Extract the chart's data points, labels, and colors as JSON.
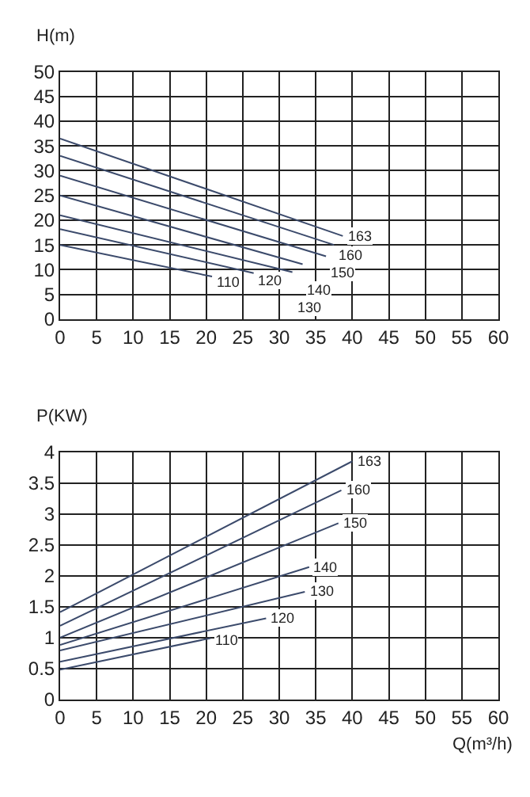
{
  "chart_data": [
    {
      "type": "line",
      "ylabel": "H(m)",
      "xlim": [
        0,
        60
      ],
      "ylim": [
        0,
        50
      ],
      "xticks": [
        0,
        5,
        10,
        15,
        20,
        25,
        30,
        35,
        40,
        45,
        50,
        55,
        60
      ],
      "yticks": [
        0,
        5,
        10,
        15,
        20,
        25,
        30,
        35,
        40,
        45,
        50
      ],
      "grid": true,
      "marker": "none",
      "line_style": "solid",
      "series": [
        {
          "name": "163",
          "color": "#3b4a6b",
          "x": [
            0,
            38.7
          ],
          "values": [
            36.5,
            16.8
          ]
        },
        {
          "name": "160",
          "color": "#3b4a6b",
          "x": [
            0,
            37.5
          ],
          "values": [
            33,
            15
          ]
        },
        {
          "name": "150",
          "color": "#3b4a6b",
          "x": [
            0,
            36.4
          ],
          "values": [
            29,
            12.7
          ]
        },
        {
          "name": "140",
          "color": "#3b4a6b",
          "x": [
            0,
            33.2
          ],
          "values": [
            25,
            11.1
          ]
        },
        {
          "name": "130",
          "color": "#3b4a6b",
          "x": [
            0,
            31.8
          ],
          "values": [
            21,
            9.5
          ]
        },
        {
          "name": "120",
          "color": "#3b4a6b",
          "x": [
            0,
            26.5
          ],
          "values": [
            18.2,
            9.3
          ]
        },
        {
          "name": "110",
          "color": "#3b4a6b",
          "x": [
            0,
            20.8
          ],
          "values": [
            15,
            8.6
          ]
        }
      ]
    },
    {
      "type": "line",
      "ylabel": "P(KW)",
      "xlabel": "Q(m³/h)",
      "xlim": [
        0,
        60
      ],
      "ylim": [
        0,
        4
      ],
      "xticks": [
        0,
        5,
        10,
        15,
        20,
        25,
        30,
        35,
        40,
        45,
        50,
        55,
        60
      ],
      "yticks": [
        0,
        0.5,
        1,
        1.5,
        2,
        2.5,
        3,
        3.5,
        4
      ],
      "grid": true,
      "marker": "none",
      "line_style": "solid",
      "series": [
        {
          "name": "163",
          "color": "#3b4a6b",
          "x": [
            0,
            40
          ],
          "values": [
            1.41,
            3.85
          ]
        },
        {
          "name": "160",
          "color": "#3b4a6b",
          "x": [
            0,
            38.5
          ],
          "values": [
            1.19,
            3.38
          ]
        },
        {
          "name": "150",
          "color": "#3b4a6b",
          "x": [
            0,
            38.1
          ],
          "values": [
            1.0,
            2.85
          ]
        },
        {
          "name": "140",
          "color": "#3b4a6b",
          "x": [
            0,
            34.1
          ],
          "values": [
            0.88,
            2.14
          ]
        },
        {
          "name": "130",
          "color": "#3b4a6b",
          "x": [
            0,
            33.5
          ],
          "values": [
            0.79,
            1.74
          ]
        },
        {
          "name": "120",
          "color": "#3b4a6b",
          "x": [
            0,
            28.2
          ],
          "values": [
            0.61,
            1.31
          ]
        },
        {
          "name": "110",
          "color": "#3b4a6b",
          "x": [
            0,
            20.6
          ],
          "values": [
            0.48,
            0.99
          ]
        }
      ]
    }
  ]
}
